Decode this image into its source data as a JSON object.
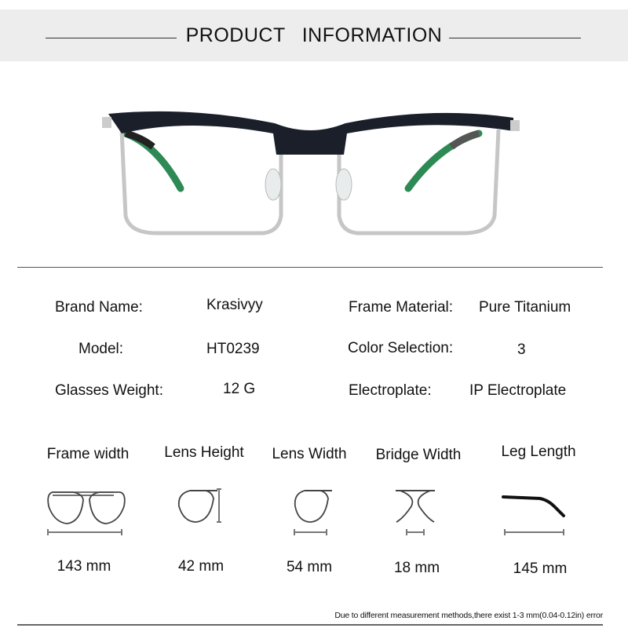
{
  "header": {
    "title": "PRODUCT INFORMATION"
  },
  "specs": {
    "rows": [
      {
        "label": "Brand Name:",
        "value": "Krasivyy",
        "label2": "Frame Material:",
        "value2": "Pure Titanium"
      },
      {
        "label": "Model:",
        "value": "HT0239",
        "label2": "Color Selection:",
        "value2": "3"
      },
      {
        "label": "Glasses Weight:",
        "value": "12 G",
        "label2": "Electroplate:",
        "value2": "IP Electroplate"
      }
    ]
  },
  "measurements": [
    {
      "label": "Frame width",
      "value": "143 mm",
      "icon": "frame-width-icon"
    },
    {
      "label": "Lens Height",
      "value": "42 mm",
      "icon": "lens-height-icon"
    },
    {
      "label": "Lens Width",
      "value": "54 mm",
      "icon": "lens-width-icon"
    },
    {
      "label": "Bridge Width",
      "value": "18 mm",
      "icon": "bridge-width-icon"
    },
    {
      "label": "Leg Length",
      "value": "145 mm",
      "icon": "leg-length-icon"
    }
  ],
  "note": "Due to different measurement methods,there exist 1-3 mm(0.04-0.12in) error",
  "colors": {
    "header_bg": "#ededed",
    "frame_top": "#1a1f2a",
    "frame_rim": "#c8c8c8",
    "temple_tip": "#2e8a55"
  }
}
